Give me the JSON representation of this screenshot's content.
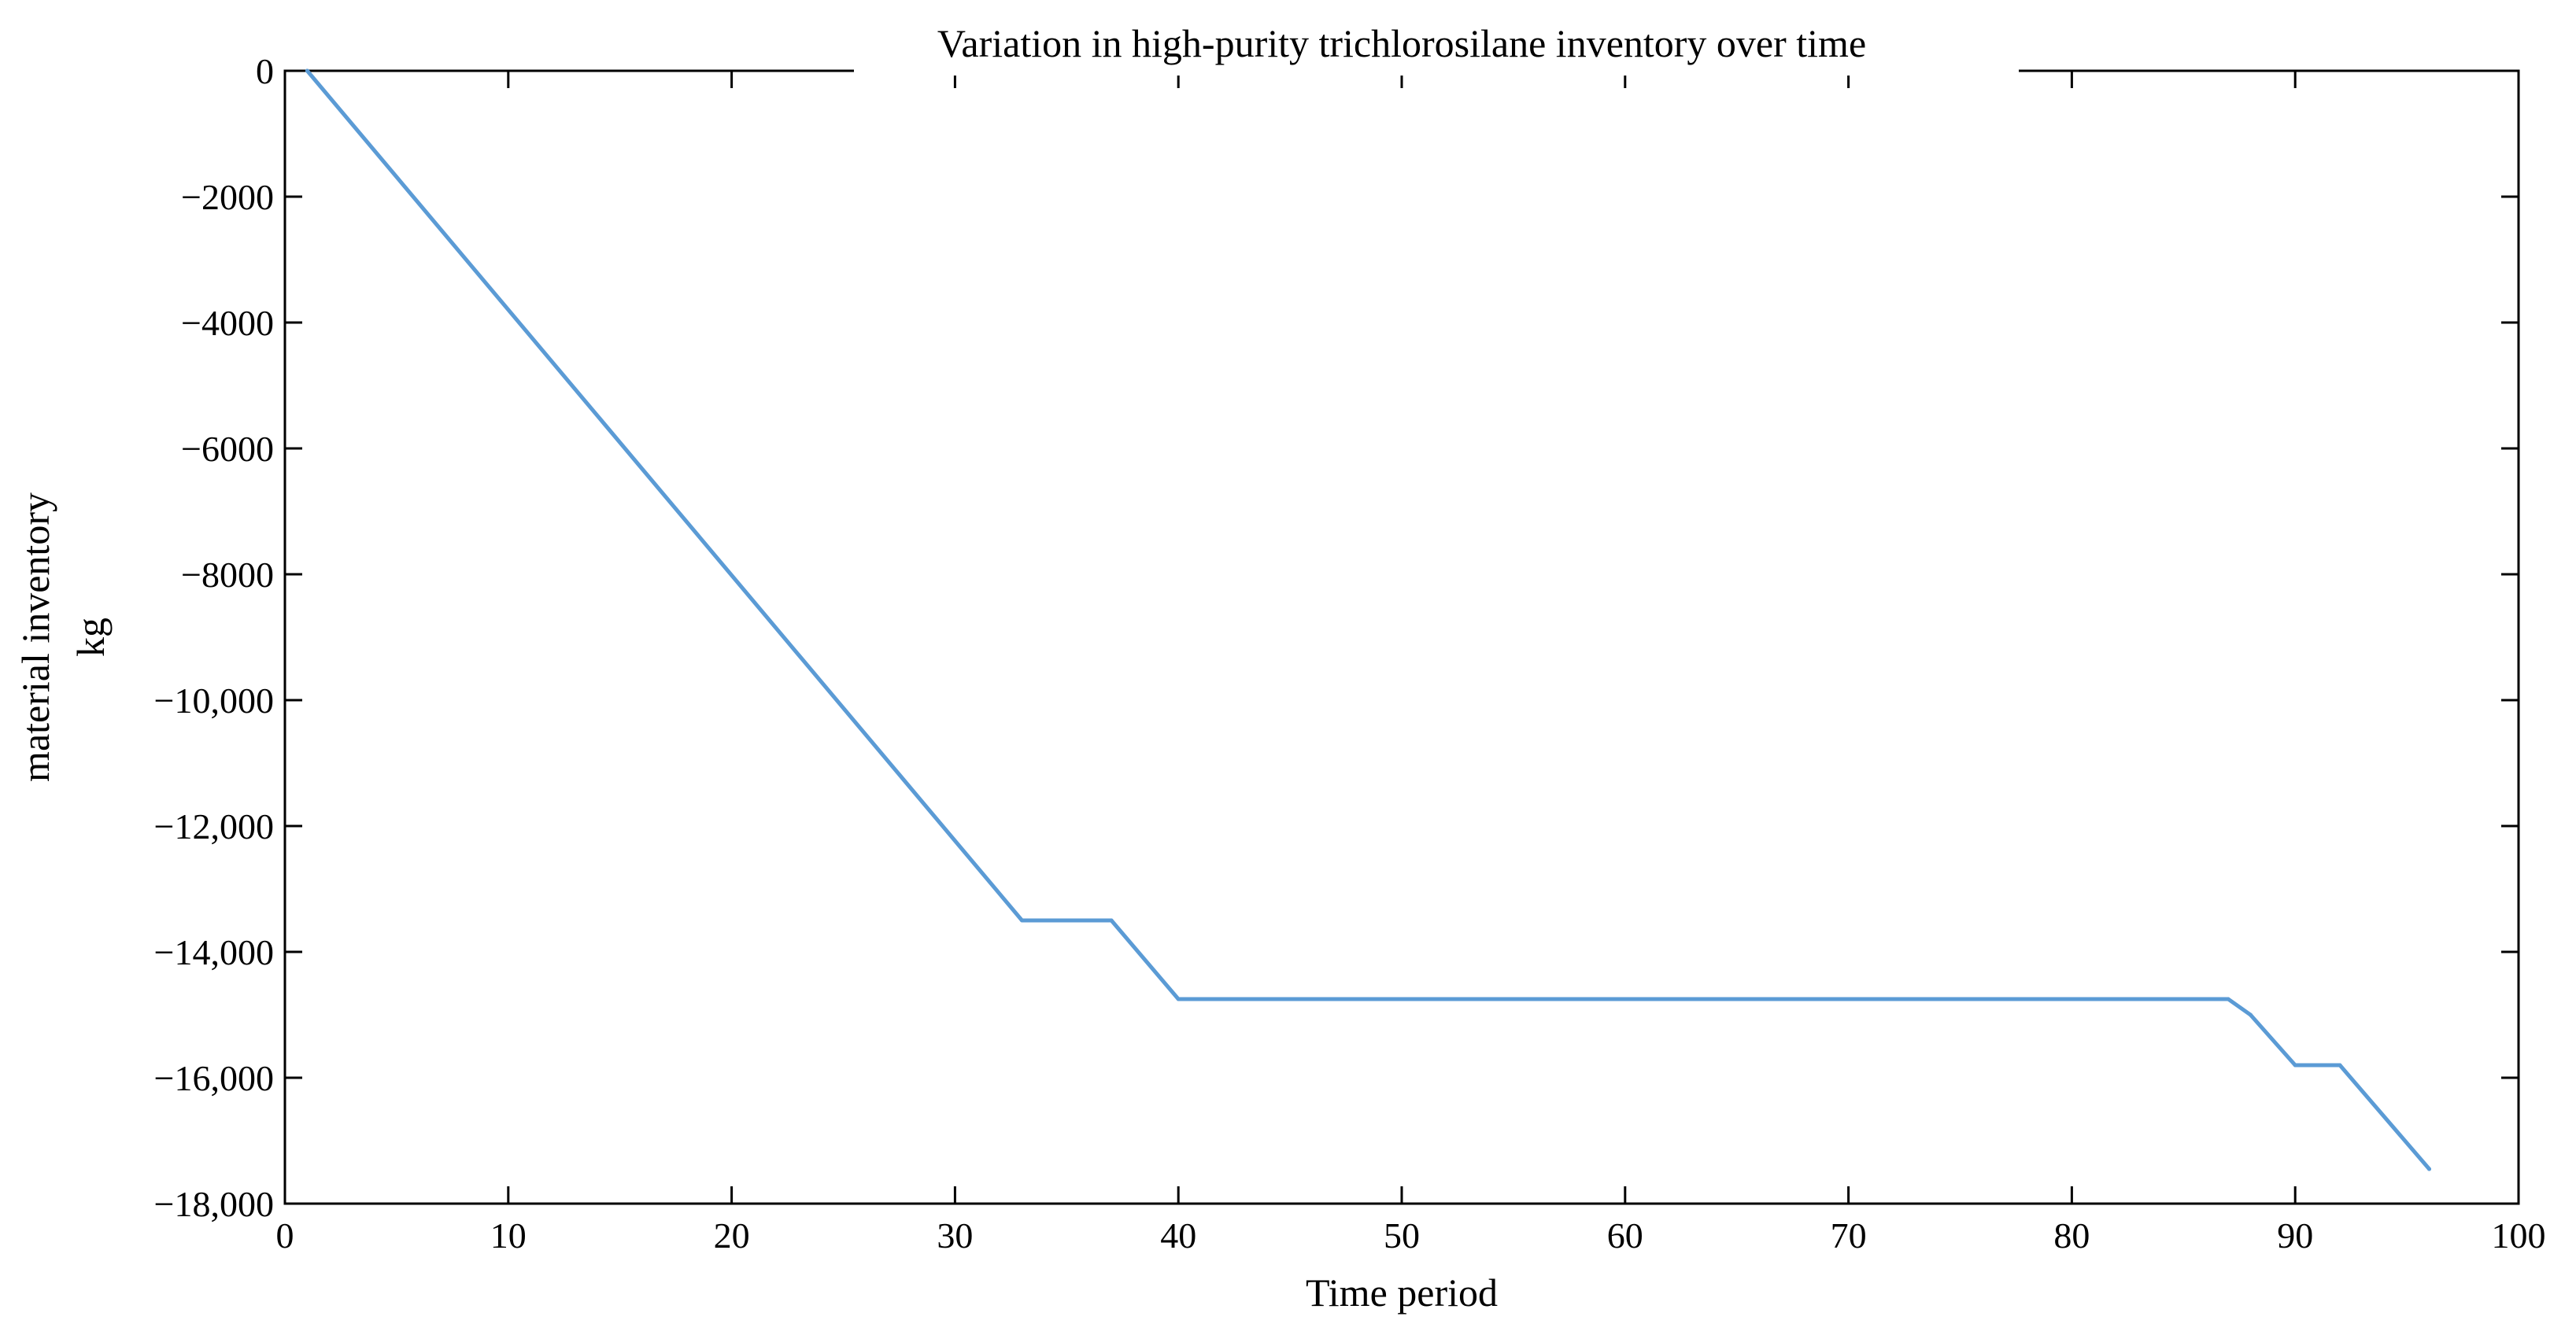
{
  "chart_data": {
    "type": "line",
    "title": "Variation in high-purity trichlorosilane inventory over time",
    "xlabel": "Time period",
    "ylabel_line1": "material inventory",
    "ylabel_line2": "kg",
    "xlim": [
      0,
      100
    ],
    "ylim": [
      -18000,
      0
    ],
    "x_ticks": [
      0,
      10,
      20,
      30,
      40,
      50,
      60,
      70,
      80,
      90,
      100
    ],
    "x_tick_labels": [
      "0",
      "10",
      "20",
      "30",
      "40",
      "50",
      "60",
      "70",
      "80",
      "90",
      "100"
    ],
    "y_ticks": [
      0,
      -2000,
      -4000,
      -6000,
      -8000,
      -10000,
      -12000,
      -14000,
      -16000,
      -18000
    ],
    "y_tick_labels": [
      "0",
      "−2000",
      "−4000",
      "−6000",
      "−8000",
      "−10,000",
      "−12,000",
      "−14,000",
      "−16,000",
      "−18,000"
    ],
    "grid": false,
    "line_color": "#5b9bd5",
    "series": [
      {
        "x": [
          1,
          33,
          37,
          40,
          87,
          88,
          90,
          92,
          96
        ],
        "y": [
          0,
          -13500,
          -13500,
          -14750,
          -14750,
          -15000,
          -15800,
          -15800,
          -17450
        ]
      }
    ]
  }
}
